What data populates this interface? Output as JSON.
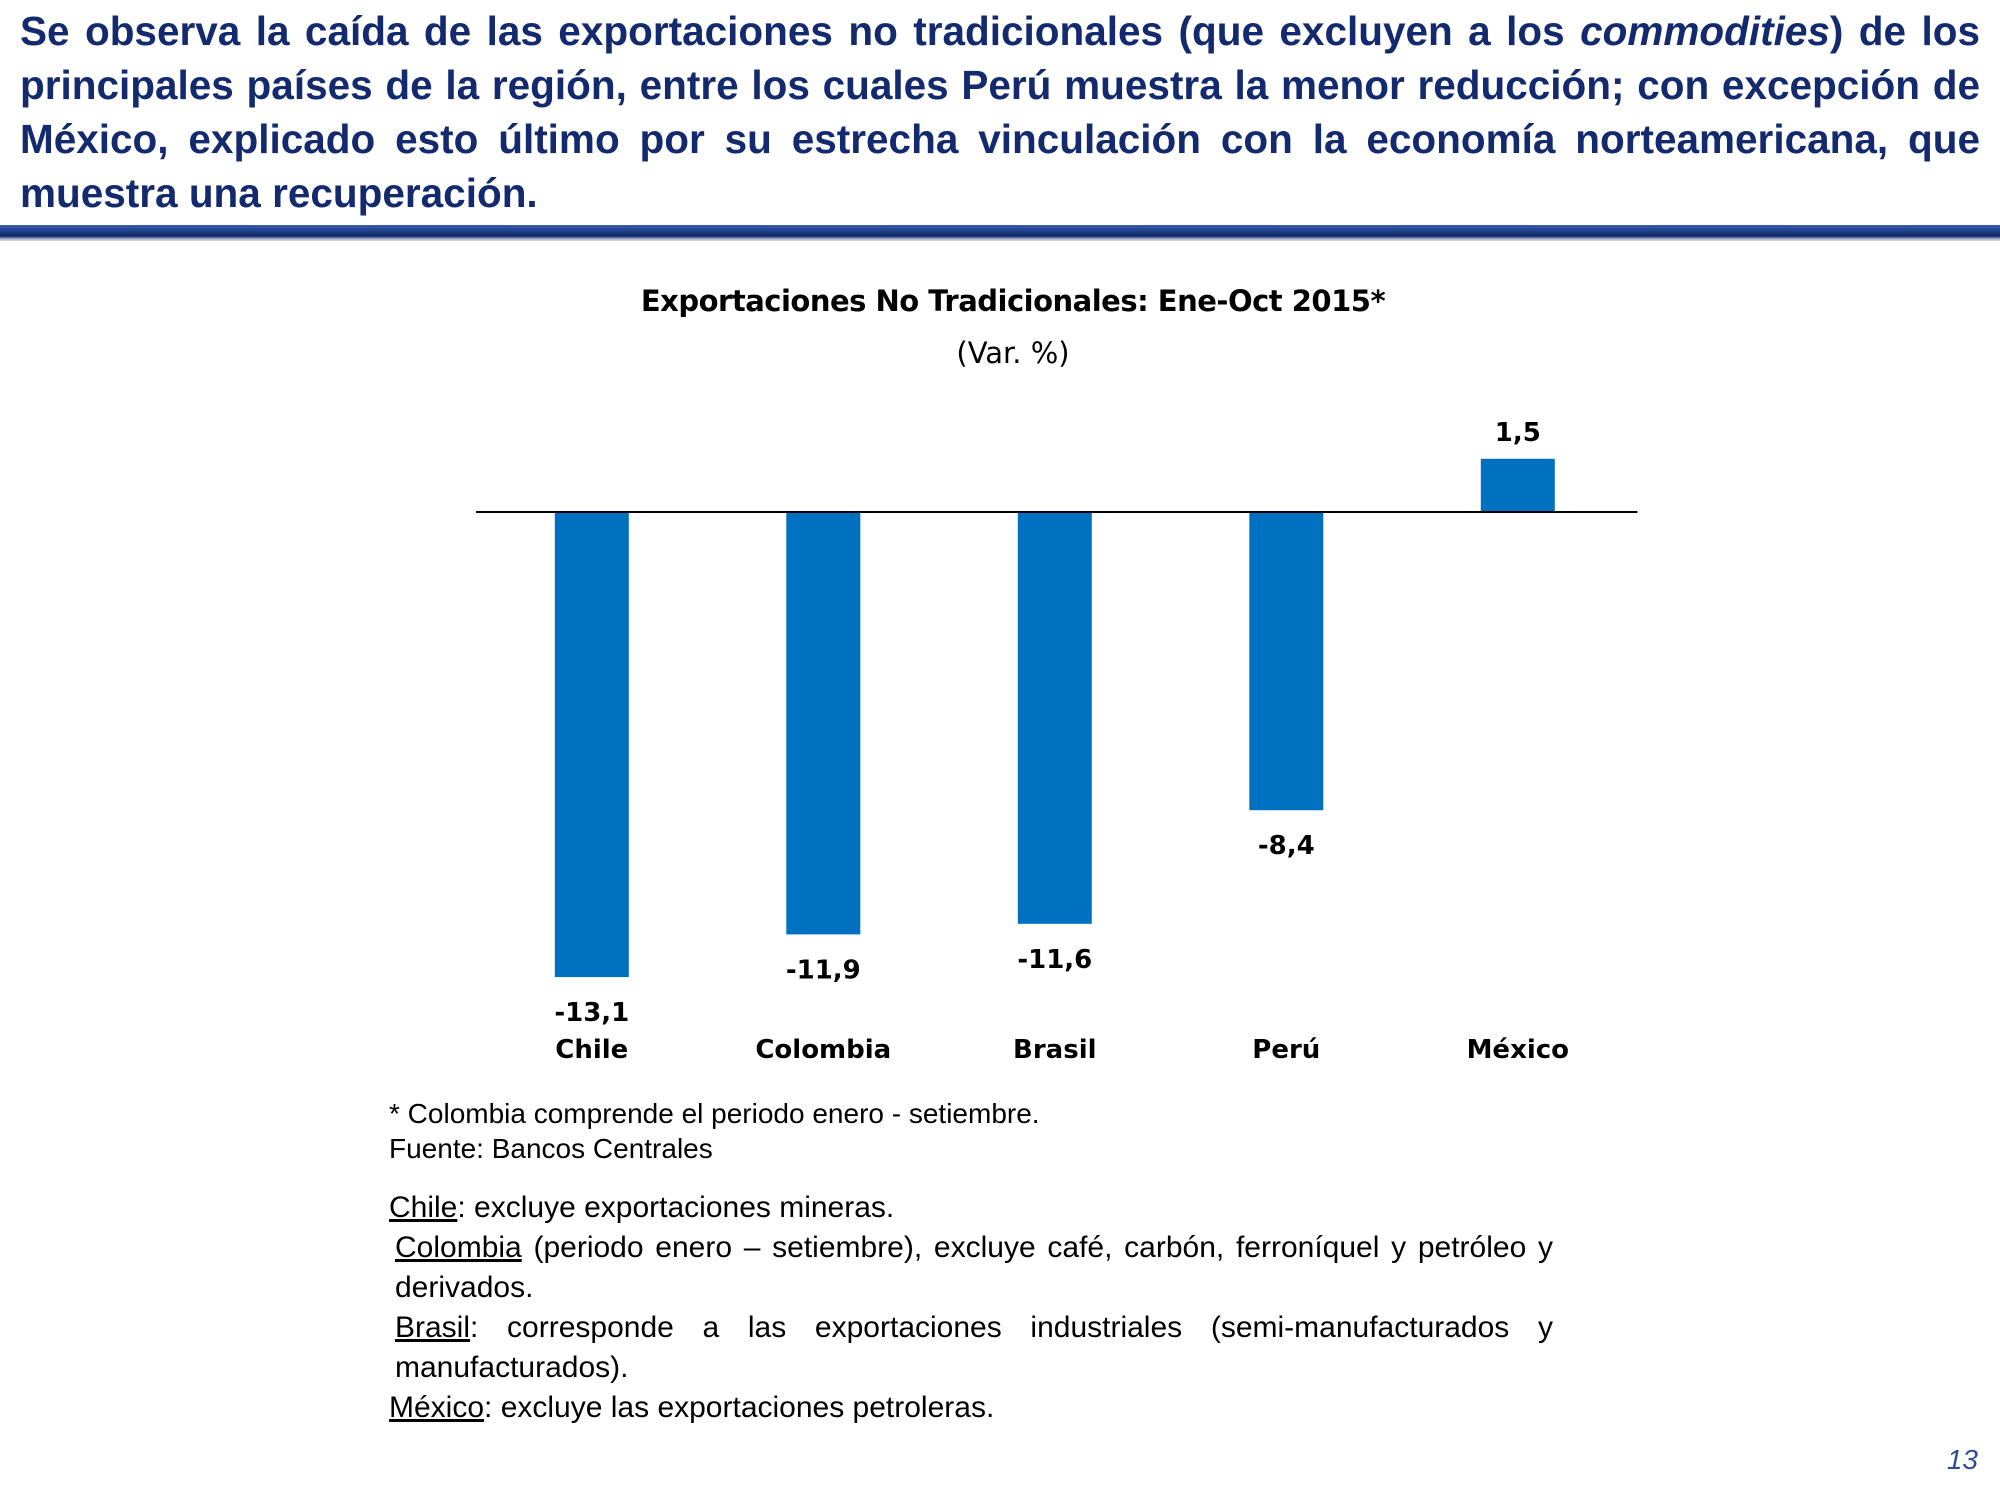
{
  "headline": {
    "part1": "Se observa la caída de las exportaciones no tradicionales (que excluyen a los ",
    "emphasis": "commodities",
    "part2": ") de los principales países de la región, entre los cuales Perú muestra la menor reducción; con excepción de México, explicado esto último por su estrecha vinculación con la economía norteamericana, que muestra una recuperación."
  },
  "chart_data": {
    "type": "bar",
    "title": "Exportaciones No Tradicionales: Ene-Oct 2015*",
    "subtitle": "(Var. %)",
    "categories": [
      "Chile",
      "Colombia",
      "Brasil",
      "Perú",
      "México"
    ],
    "values": [
      -13.1,
      -11.9,
      -11.6,
      -8.4,
      1.5
    ],
    "data_labels": [
      "-13,1",
      "-11,9",
      "-11,6",
      "-8,4",
      "1,5"
    ],
    "bar_color": "#0070c0",
    "xlabel": "",
    "ylabel": "",
    "grid": false,
    "legend": "none"
  },
  "notes": {
    "footnote": "* Colombia comprende el periodo enero - setiembre.",
    "source": "Fuente: Bancos Centrales"
  },
  "definitions": [
    {
      "country": "Chile",
      "text": ": excluye exportaciones mineras."
    },
    {
      "country": "Colombia",
      "text": " (periodo enero – setiembre), excluye café, carbón, ferroníquel y petróleo y derivados."
    },
    {
      "country": "Brasil",
      "text": ": corresponde a las exportaciones industriales (semi-manufacturados y manufacturados)."
    },
    {
      "country": "México",
      "text": ": excluye las exportaciones petroleras."
    }
  ],
  "page_number": "13",
  "colors": {
    "headline": "#142a6e",
    "accent_rule": "#1c3a86",
    "bar": "#0070c0"
  }
}
